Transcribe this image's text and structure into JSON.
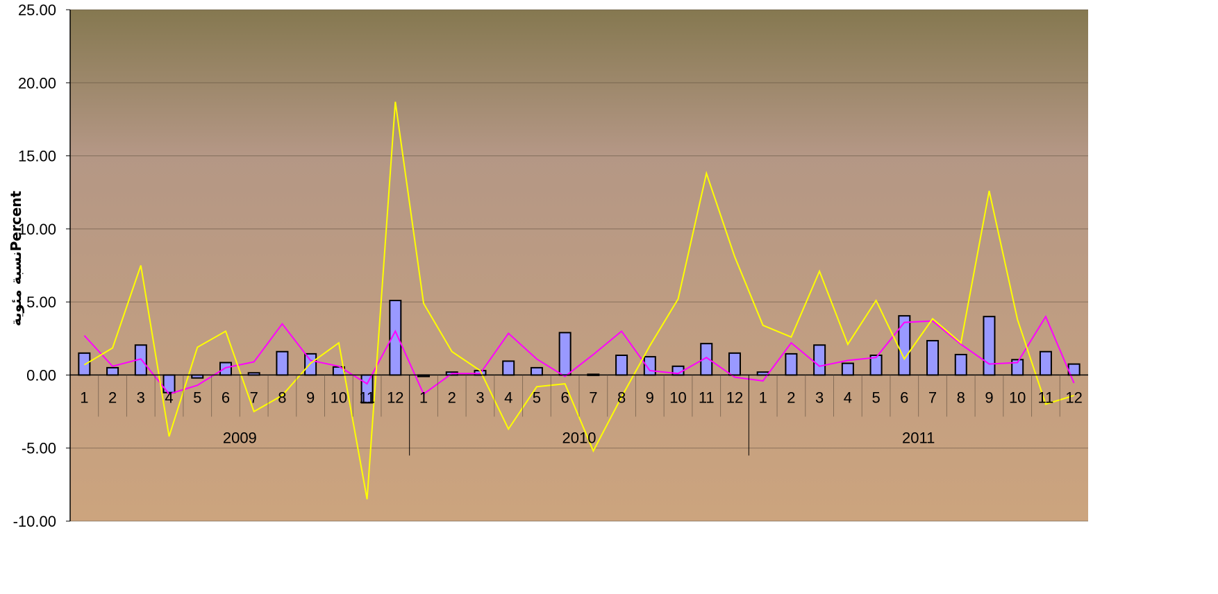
{
  "chart_data": {
    "type": "bar",
    "ylabel": "نسبة مئويةPercent",
    "ylim": [
      -10,
      25
    ],
    "yticks": [
      -10,
      -5,
      0,
      5,
      10,
      15,
      20,
      25
    ],
    "ytick_labels": [
      "-10.00",
      "-5.00",
      "0.00",
      "5.00",
      "10.00",
      "15.00",
      "20.00",
      "25.00"
    ],
    "grid": true,
    "legend": "none",
    "years": [
      "2009",
      "2010",
      "2011"
    ],
    "categories": [
      "1",
      "2",
      "3",
      "4",
      "5",
      "6",
      "7",
      "8",
      "9",
      "10",
      "11",
      "12",
      "1",
      "2",
      "3",
      "4",
      "5",
      "6",
      "7",
      "8",
      "9",
      "10",
      "11",
      "12",
      "1",
      "2",
      "3",
      "4",
      "5",
      "6",
      "7",
      "8",
      "9",
      "10",
      "11",
      "12"
    ],
    "colors": {
      "bar_fill": "#9999FF",
      "line_1": "#FF00FF",
      "line_2": "#FFFF00",
      "background_top": "#857850",
      "background_mid": "#B49785",
      "background_bottom": "#CCA47E"
    },
    "series": [
      {
        "type": "bar",
        "values": [
          1.5,
          0.5,
          2.05,
          -1.2,
          -0.2,
          0.85,
          0.15,
          1.6,
          1.45,
          0.55,
          -1.9,
          5.1,
          -0.1,
          0.2,
          0.3,
          0.95,
          0.5,
          2.9,
          0.05,
          1.35,
          1.25,
          0.6,
          2.15,
          1.5,
          0.2,
          1.45,
          2.05,
          0.8,
          1.35,
          4.05,
          2.35,
          1.4,
          4.0,
          1.05,
          1.6,
          0.75
        ]
      },
      {
        "type": "line",
        "values": [
          2.7,
          0.6,
          1.1,
          -1.3,
          -0.7,
          0.5,
          0.9,
          3.5,
          1.0,
          0.6,
          -0.6,
          3.0,
          -1.3,
          0.1,
          0.1,
          2.85,
          1.1,
          -0.1,
          1.4,
          3.0,
          0.3,
          0.1,
          1.2,
          -0.15,
          -0.4,
          2.2,
          0.6,
          1.0,
          1.2,
          3.6,
          3.7,
          2.1,
          0.75,
          0.85,
          4.0,
          -0.55
        ]
      },
      {
        "type": "line",
        "values": [
          0.7,
          1.85,
          7.5,
          -4.2,
          1.9,
          3.0,
          -2.5,
          -1.4,
          0.8,
          2.2,
          -8.5,
          18.7,
          4.9,
          1.6,
          0.3,
          -3.7,
          -0.8,
          -0.6,
          -5.2,
          -1.5,
          2.0,
          5.2,
          13.8,
          8.1,
          3.4,
          2.6,
          7.1,
          2.1,
          5.1,
          1.1,
          3.85,
          2.2,
          12.6,
          3.8,
          -2.0,
          -1.4
        ]
      }
    ]
  }
}
